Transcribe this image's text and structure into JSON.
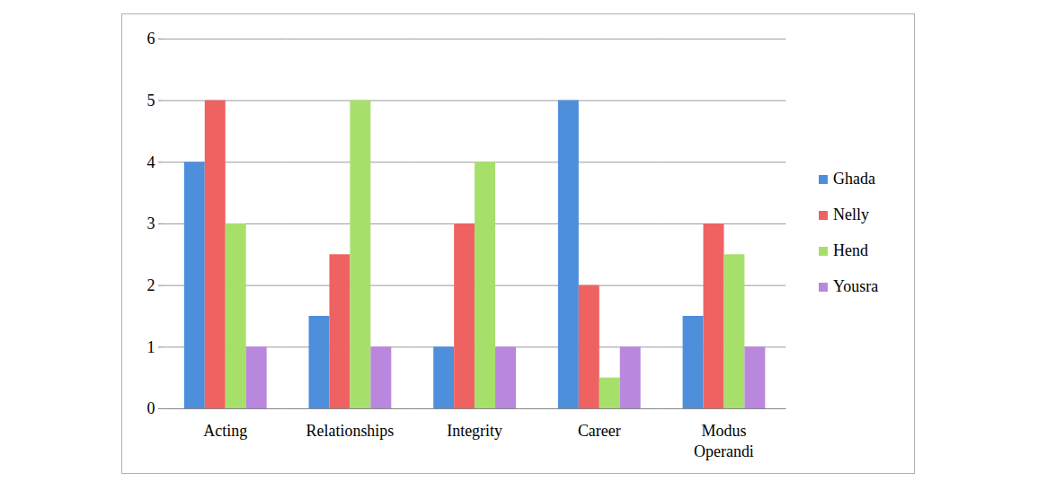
{
  "chart_data": {
    "type": "bar",
    "categories": [
      "Acting",
      "Relationships",
      "Integrity",
      "Career",
      "Modus Operandi"
    ],
    "series": [
      {
        "name": "Ghada",
        "color": "#4e8fdc",
        "values": [
          4,
          1.5,
          1,
          5,
          1.5
        ]
      },
      {
        "name": "Nelly",
        "color": "#ef6262",
        "values": [
          5,
          2.5,
          3,
          2,
          3
        ]
      },
      {
        "name": "Hend",
        "color": "#a6e06a",
        "values": [
          3,
          5,
          4,
          0.5,
          2.5
        ]
      },
      {
        "name": "Yousra",
        "color": "#b987dd",
        "values": [
          1,
          1,
          1,
          1,
          1
        ]
      }
    ],
    "ylim": [
      0,
      6
    ],
    "yticks": [
      0,
      1,
      2,
      3,
      4,
      5,
      6
    ],
    "grid": true,
    "legend": "right"
  }
}
